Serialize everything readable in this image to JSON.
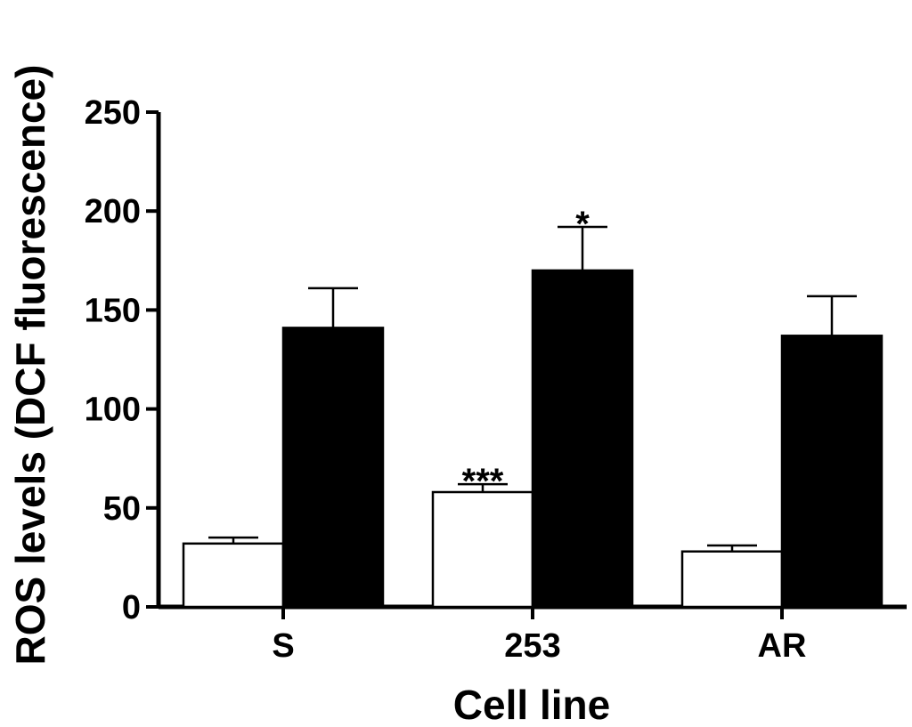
{
  "chart_data": {
    "type": "bar",
    "title": "",
    "xlabel": "Cell line",
    "ylabel": "ROS levels (DCF fluorescence)",
    "categories": [
      "S",
      "253",
      "AR"
    ],
    "ylim": [
      0,
      250
    ],
    "yticks": [
      0,
      50,
      100,
      150,
      200,
      250
    ],
    "grid": false,
    "legend": "none",
    "series": [
      {
        "values": [
          32,
          58,
          28
        ],
        "errors": [
          3,
          4,
          3
        ],
        "color": "#ffffff"
      },
      {
        "values": [
          141,
          170,
          137
        ],
        "errors": [
          20,
          22,
          20
        ],
        "color": "#000000"
      }
    ],
    "annotations": [
      {
        "category": "253",
        "series": 0,
        "text": "***"
      },
      {
        "category": "253",
        "series": 1,
        "text": "*"
      }
    ]
  }
}
